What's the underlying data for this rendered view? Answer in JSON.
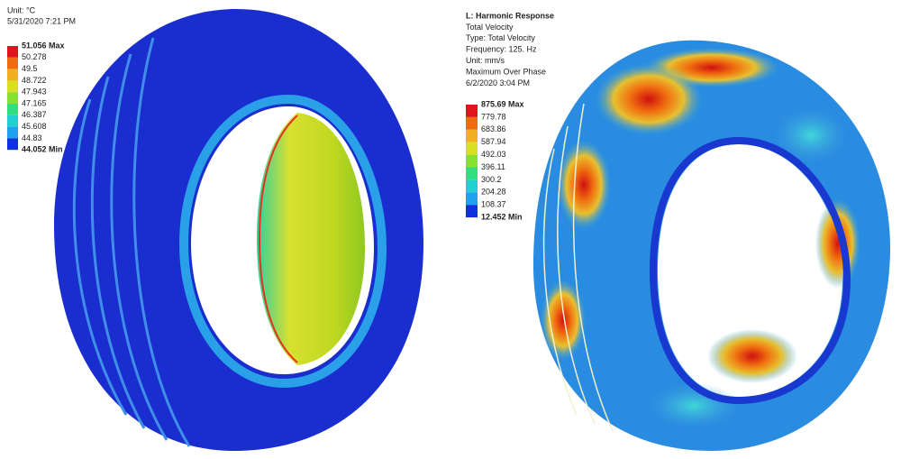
{
  "left_panel": {
    "lines": [
      "Unit: °C",
      "5/31/2020 7:21 PM"
    ],
    "legend": {
      "labels": [
        "51.056 Max",
        "50.278",
        "49.5",
        "48.722",
        "47.943",
        "47.165",
        "46.387",
        "45.608",
        "44.83",
        "44.052 Min"
      ],
      "colors": [
        "#e0141e",
        "#f06a10",
        "#f0b020",
        "#d8e020",
        "#88e030",
        "#30e080",
        "#20d0d0",
        "#20a0f0",
        "#1030e0"
      ]
    }
  },
  "right_panel": {
    "title": "L: Harmonic Response",
    "lines": [
      "Total Velocity",
      "Type: Total Velocity",
      "Frequency: 125. Hz",
      "Unit: mm/s",
      "Maximum Over Phase",
      "6/2/2020 3:04 PM"
    ],
    "legend": {
      "labels": [
        "875.69 Max",
        "779.78",
        "683.86",
        "587.94",
        "492.03",
        "396.11",
        "300.2",
        "204.28",
        "108.37",
        "12.452 Min"
      ],
      "colors": [
        "#e0141e",
        "#f06a10",
        "#f0b020",
        "#d8e020",
        "#88e030",
        "#30e080",
        "#20d0d0",
        "#20a0f0",
        "#1030e0"
      ]
    }
  }
}
